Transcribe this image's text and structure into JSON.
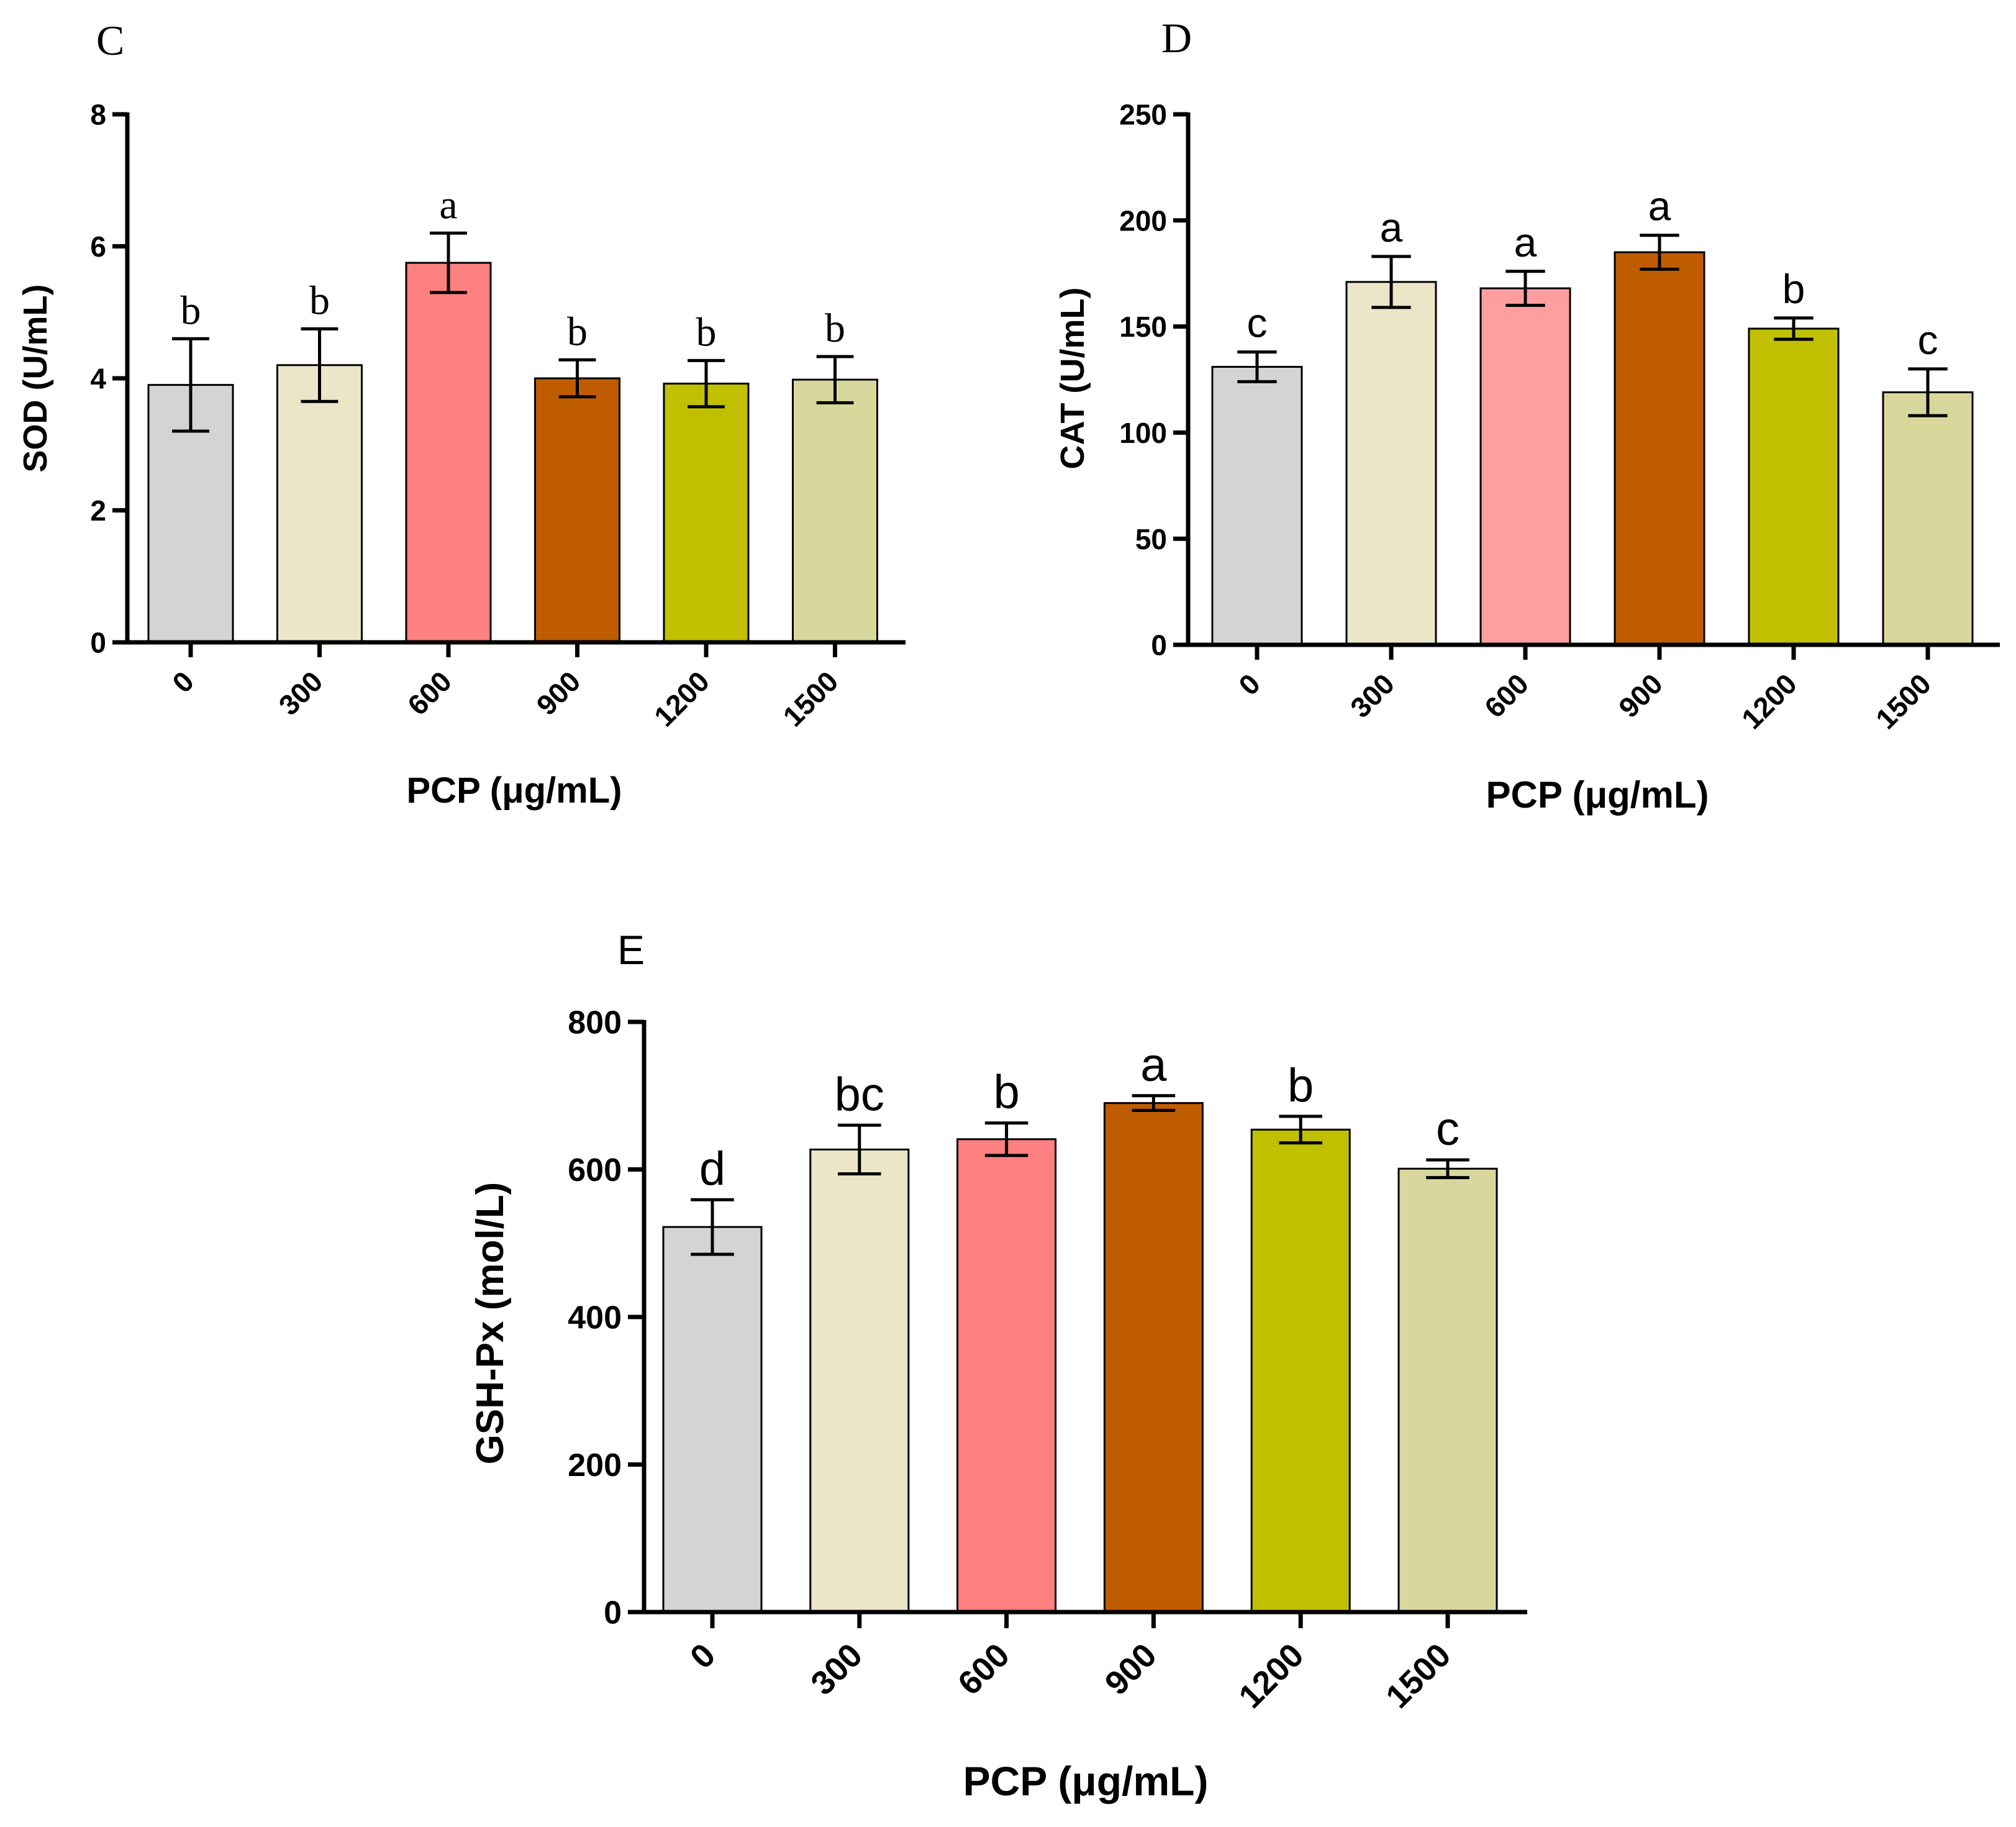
{
  "chart_data": [
    {
      "id": "C",
      "type": "bar",
      "panel_label": "C",
      "panel_label_font": "serif",
      "sig_font": "serif",
      "xlabel": "PCP (μg/mL)",
      "ylabel": "SOD (U/mL)",
      "categories": [
        "0",
        "300",
        "600",
        "900",
        "1200",
        "1500"
      ],
      "values": [
        3.9,
        4.2,
        5.75,
        4.0,
        3.92,
        3.98
      ],
      "errors": [
        0.7,
        0.55,
        0.45,
        0.28,
        0.35,
        0.35
      ],
      "sig_labels": [
        "b",
        "b",
        "a",
        "b",
        "b",
        "b"
      ],
      "ylim": [
        0,
        8
      ],
      "yticks": [
        0,
        2,
        4,
        6,
        8
      ],
      "ytick_labels": [
        "0",
        "2",
        "4",
        "6",
        "8"
      ]
    },
    {
      "id": "D",
      "type": "bar",
      "panel_label": "D",
      "panel_label_font": "serif",
      "sig_font": "sans",
      "xlabel": "PCP (μg/mL)",
      "ylabel": "CAT (U/mL)",
      "categories": [
        "0",
        "300",
        "600",
        "900",
        "1200",
        "1500"
      ],
      "values": [
        131,
        171,
        168,
        185,
        149,
        119
      ],
      "errors": [
        7,
        12,
        8,
        8,
        5,
        11
      ],
      "sig_labels": [
        "c",
        "a",
        "a",
        "a",
        "b",
        "c"
      ],
      "ylim": [
        0,
        250
      ],
      "yticks": [
        0,
        50,
        100,
        150,
        200,
        250
      ],
      "ytick_labels": [
        "0",
        "50",
        "100",
        "150",
        "200",
        "250"
      ]
    },
    {
      "id": "E",
      "type": "bar",
      "panel_label": "E",
      "panel_label_font": "sans",
      "sig_font": "sans",
      "xlabel": "PCP (μg/mL)",
      "ylabel": "GSH-Px (mol/L)",
      "categories": [
        "0",
        "300",
        "600",
        "900",
        "1200",
        "1500"
      ],
      "values": [
        522,
        627,
        641,
        690,
        654,
        601
      ],
      "errors": [
        37,
        33,
        22,
        10,
        18,
        12
      ],
      "sig_labels": [
        "d",
        "bc",
        "b",
        "a",
        "b",
        "c"
      ],
      "ylim": [
        0,
        800
      ],
      "yticks": [
        0,
        200,
        400,
        600,
        800
      ],
      "ytick_labels": [
        "0",
        "200",
        "400",
        "600",
        "800"
      ]
    }
  ],
  "colors": {
    "bars": [
      "#d4d4d4",
      "#ebe6c8",
      "#ff8080",
      "#c05c00",
      "#c0c000",
      "#d8d89c"
    ],
    "bars_d": [
      "#d4d4d4",
      "#ebe6c8",
      "#ff9e9e",
      "#c05c00",
      "#c0c000",
      "#d8d89c"
    ]
  }
}
